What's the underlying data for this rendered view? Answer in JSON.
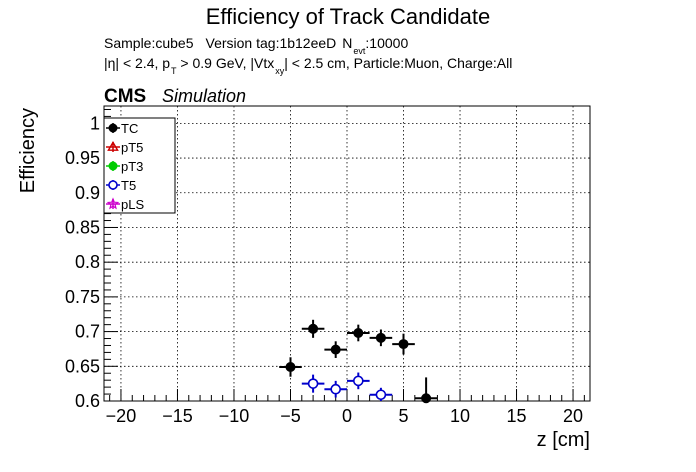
{
  "chart_data": {
    "type": "scatter",
    "title": "Efficiency of Track Candidate",
    "subtitle_line1": {
      "sample": "Sample:cube5",
      "version": "Version tag:1b12eeD",
      "nevt_label": "N",
      "nevt_sub": "evt",
      "nevt_value": ":10000"
    },
    "subtitle_line2": {
      "eta": "|η| < 2.4, p",
      "pt_sub": "T",
      "pt_cut": " > 0.9 GeV, |Vtx",
      "vtx_sub": "xy",
      "rest": "| < 2.5 cm, Particle:Muon, Charge:All"
    },
    "cms_label": "CMS",
    "cms_sublabel": "Simulation",
    "xlabel": "z [cm]",
    "ylabel": "Efficiency",
    "xlim": [
      -21.5,
      21.5
    ],
    "ylim": [
      0.6,
      1.025
    ],
    "xticks": [
      -20,
      -15,
      -10,
      -5,
      0,
      5,
      10,
      15,
      20
    ],
    "xtick_labels": [
      "−20",
      "−15",
      "−10",
      "−5",
      "0",
      "5",
      "10",
      "15",
      "20"
    ],
    "yticks": [
      0.6,
      0.65,
      0.7,
      0.75,
      0.8,
      0.85,
      0.9,
      0.95,
      1
    ],
    "ytick_labels": [
      "0.6",
      "0.65",
      "0.7",
      "0.75",
      "0.8",
      "0.85",
      "0.9",
      "0.95",
      "1"
    ],
    "grid": true,
    "legend_position": "top-left",
    "series": [
      {
        "name": "TC",
        "color": "#000000",
        "marker": "filled-circle",
        "points": [
          {
            "x": -5,
            "xerr": 1,
            "y": 0.649,
            "yerr": 0.014
          },
          {
            "x": -3,
            "xerr": 1,
            "y": 0.704,
            "yerr": 0.013
          },
          {
            "x": -1,
            "xerr": 1,
            "y": 0.674,
            "yerr": 0.012
          },
          {
            "x": 1,
            "xerr": 1,
            "y": 0.698,
            "yerr": 0.012
          },
          {
            "x": 3,
            "xerr": 1,
            "y": 0.691,
            "yerr": 0.012
          },
          {
            "x": 5,
            "xerr": 1,
            "y": 0.682,
            "yerr": 0.015
          },
          {
            "x": 7,
            "xerr": 1,
            "y": 0.604,
            "yerr": 0.03
          }
        ]
      },
      {
        "name": "pT5",
        "color": "#cc0000",
        "marker": "open-triangle",
        "points": []
      },
      {
        "name": "pT3",
        "color": "#00cc00",
        "marker": "filled-circle",
        "points": []
      },
      {
        "name": "T5",
        "color": "#0000cc",
        "marker": "open-circle",
        "points": [
          {
            "x": -3,
            "xerr": 1,
            "y": 0.625,
            "yerr": 0.013
          },
          {
            "x": -1,
            "xerr": 1,
            "y": 0.617,
            "yerr": 0.012
          },
          {
            "x": 1,
            "xerr": 1,
            "y": 0.629,
            "yerr": 0.012
          },
          {
            "x": 3,
            "xerr": 1,
            "y": 0.609,
            "yerr": 0.01
          }
        ]
      },
      {
        "name": "pLS",
        "color": "#cc00cc",
        "marker": "open-star",
        "points": []
      }
    ]
  }
}
